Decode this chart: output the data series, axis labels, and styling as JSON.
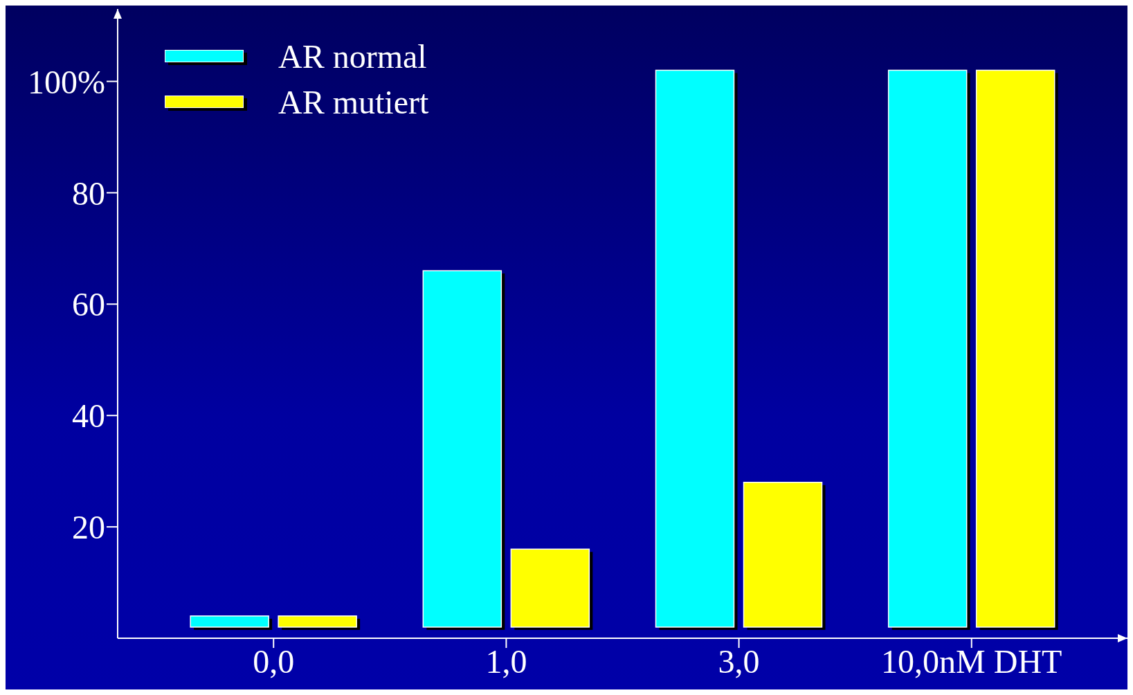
{
  "chart_data": {
    "type": "bar",
    "categories": [
      "0,0",
      "1,0",
      "3,0",
      "10,0nM DHT"
    ],
    "series": [
      {
        "name": "AR normal",
        "color": "#00ffff",
        "values": [
          2,
          64,
          100,
          100
        ],
        "base": [
          2,
          2,
          2,
          2
        ]
      },
      {
        "name": "AR mutiert",
        "color": "#ffff00",
        "values": [
          2,
          14,
          26,
          100
        ],
        "base": [
          2,
          2,
          2,
          2
        ]
      }
    ],
    "ylim": [
      0,
      113
    ],
    "yticks": [
      20,
      40,
      60,
      80,
      {
        "value": 100,
        "label": "100%"
      }
    ],
    "legend": "top left"
  }
}
